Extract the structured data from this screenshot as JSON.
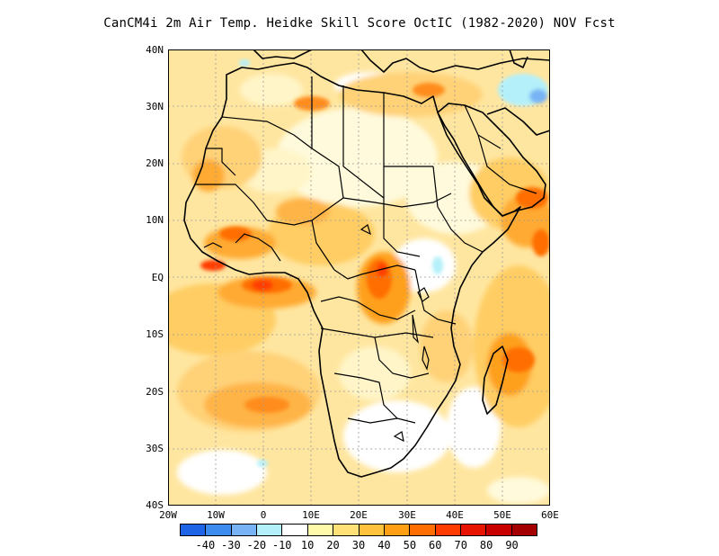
{
  "title": "CanCM4i  2m Air Temp. Heidke Skill Score OctIC (1982-2020) NOV Fcst",
  "map": {
    "lon_range": [
      -20,
      60
    ],
    "lat_range": [
      -40,
      40
    ],
    "grid": true,
    "region": "Africa"
  },
  "axes": {
    "lat_labels": [
      "40N",
      "30N",
      "20N",
      "10N",
      "EQ",
      "10S",
      "20S",
      "30S",
      "40S"
    ],
    "lon_labels": [
      "20W",
      "10W",
      "0",
      "10E",
      "20E",
      "30E",
      "40E",
      "50E",
      "60E"
    ]
  },
  "colorbar": {
    "colors": [
      "#1e64e6",
      "#3c8cf0",
      "#78b4f5",
      "#b4f0fa",
      "#ffffff",
      "#fffaaa",
      "#ffe178",
      "#ffc23c",
      "#ffa014",
      "#ff6e00",
      "#ff3c00",
      "#e61400",
      "#c80000",
      "#a50000"
    ],
    "labels": [
      "-40",
      "-30",
      "-20",
      "-10",
      "10",
      "20",
      "30",
      "40",
      "50",
      "60",
      "70",
      "80",
      "90"
    ]
  }
}
